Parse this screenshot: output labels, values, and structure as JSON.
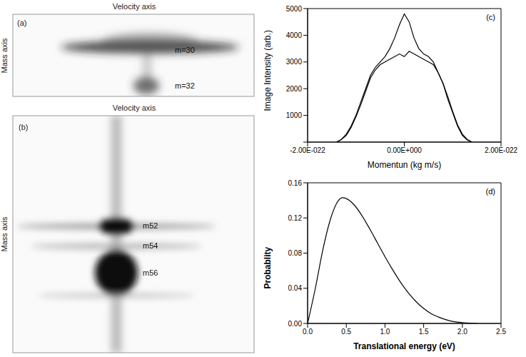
{
  "chart_data": [
    {
      "type": "image",
      "panel": "(a)",
      "x_label": "Velocity axis",
      "y_label": "Mass axis",
      "annotations": [
        "m=30",
        "m=32"
      ]
    },
    {
      "type": "image",
      "panel": "(b)",
      "x_label": "Velocity axis",
      "y_label": "Mass axis",
      "annotations": [
        "m52",
        "m54",
        "m56"
      ]
    },
    {
      "type": "line",
      "panel": "(c)",
      "x_label": "Momentun (kg m/s)",
      "y_label": "Image Intensity (arb.)",
      "x": [
        -1.4e-22,
        -1.3e-22,
        -1.2e-22,
        -1.1e-22,
        -1e-22,
        -9e-23,
        -8e-23,
        -7e-23,
        -6e-23,
        -5e-23,
        -4e-23,
        -3e-23,
        -2e-23,
        -1e-23,
        0,
        1e-23,
        2e-23,
        3e-23,
        4e-23,
        5e-23,
        6e-23,
        7e-23,
        8e-23,
        9e-23,
        1e-22,
        1.1e-22,
        1.2e-22,
        1.3e-22,
        1.4e-22
      ],
      "series": [
        {
          "color": "#000000",
          "values": [
            0,
            100,
            300,
            600,
            1000,
            1500,
            2000,
            2500,
            2800,
            3000,
            3200,
            3500,
            3900,
            4400,
            4800,
            4500,
            3900,
            3500,
            3300,
            3200,
            3000,
            2600,
            2200,
            1600,
            1100,
            600,
            250,
            80,
            0
          ]
        },
        {
          "color": "#000000",
          "values": [
            0,
            100,
            250,
            550,
            950,
            1400,
            1900,
            2400,
            2700,
            2900,
            3000,
            3100,
            3200,
            3300,
            3200,
            3400,
            3300,
            3200,
            3100,
            3000,
            2900,
            2600,
            2200,
            1700,
            1150,
            650,
            300,
            100,
            0
          ]
        }
      ],
      "xlim": [
        -2e-22,
        2e-22
      ],
      "xticks": [
        {
          "value": -2e-22,
          "label": "-2.00E-022"
        },
        {
          "value": 0,
          "label": "0.00E+000"
        },
        {
          "value": 2e-22,
          "label": "2.00E-022"
        }
      ],
      "ylim": [
        0,
        5000
      ],
      "yticks": [
        0,
        1000,
        2000,
        3000,
        4000,
        5000
      ]
    },
    {
      "type": "line",
      "panel": "(d)",
      "x_label": "Translational energy (eV)",
      "y_label": "Probablity",
      "x": [
        0,
        0.1,
        0.2,
        0.3,
        0.4,
        0.45,
        0.5,
        0.6,
        0.7,
        0.8,
        0.9,
        1.0,
        1.1,
        1.2,
        1.3,
        1.4,
        1.5,
        1.6,
        1.7,
        1.8,
        1.9,
        2.0,
        2.1,
        2.2
      ],
      "series": [
        {
          "color": "#000000",
          "values": [
            0,
            0.04,
            0.085,
            0.12,
            0.14,
            0.143,
            0.142,
            0.135,
            0.123,
            0.108,
            0.092,
            0.076,
            0.061,
            0.047,
            0.035,
            0.025,
            0.017,
            0.011,
            0.007,
            0.004,
            0.002,
            0.001,
            0.0003,
            0
          ]
        }
      ],
      "xlim": [
        0,
        2.5
      ],
      "xticks": [
        {
          "value": 0,
          "label": "0.0"
        },
        0.5,
        {
          "value": 1,
          "label": "1.0"
        },
        1.5,
        {
          "value": 2,
          "label": "2.0"
        },
        2.5
      ],
      "ylim": [
        0,
        0.16
      ],
      "yticks": [
        {
          "value": 0,
          "label": "0.00"
        },
        {
          "value": 0.04,
          "label": "0.04"
        },
        {
          "value": 0.08,
          "label": "0.08"
        },
        {
          "value": 0.12,
          "label": "0.12"
        },
        {
          "value": 0.16,
          "label": "0.16"
        }
      ]
    }
  ]
}
